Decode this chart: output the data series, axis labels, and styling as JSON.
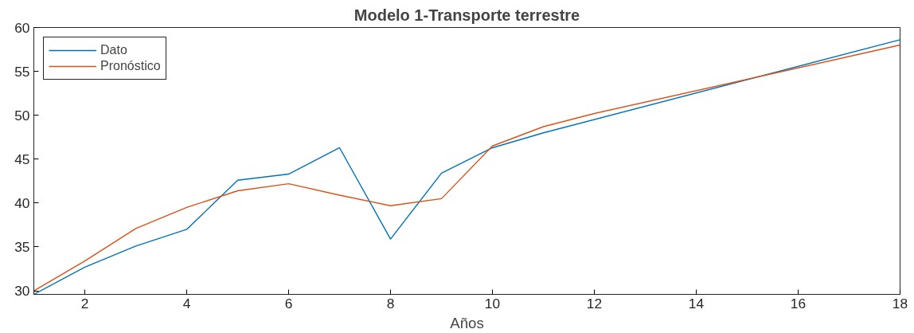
{
  "chart_data": {
    "type": "line",
    "title": "Modelo 1-Transporte terrestre",
    "xlabel": "Años",
    "xlim": [
      1,
      18
    ],
    "xticks": [
      2,
      4,
      6,
      8,
      10,
      12,
      14,
      16,
      18
    ],
    "ylim": [
      29.6,
      60
    ],
    "yticks": [
      30,
      35,
      40,
      45,
      50,
      55,
      60
    ],
    "grid": false,
    "legend": "top left",
    "marker": "none",
    "line_style": "solid",
    "series": [
      {
        "name": "Dato",
        "color": "#0072bd",
        "x": [
          1,
          2,
          3,
          4,
          5,
          6,
          7,
          8,
          9,
          10,
          11,
          18
        ],
        "values": [
          29.6,
          32.7,
          35.1,
          37.0,
          42.6,
          43.3,
          46.3,
          35.9,
          43.4,
          46.3,
          48.0,
          58.6
        ]
      },
      {
        "name": "Pronóstico",
        "color": "#d95319",
        "x": [
          1,
          2,
          3,
          4,
          5,
          6,
          7,
          8,
          9,
          10,
          11,
          12,
          18
        ],
        "values": [
          30.0,
          33.4,
          37.1,
          39.5,
          41.4,
          42.2,
          40.9,
          39.7,
          40.5,
          46.5,
          48.7,
          50.2,
          58.0
        ]
      }
    ]
  }
}
